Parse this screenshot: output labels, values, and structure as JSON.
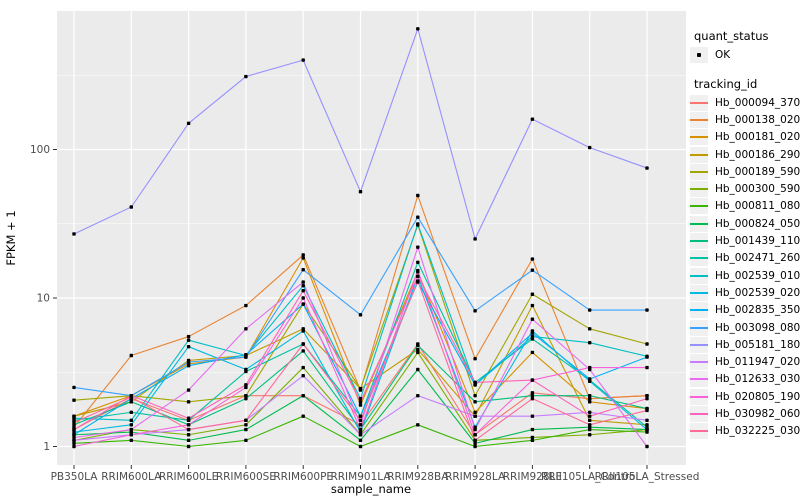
{
  "legend": {
    "quant_status_title": "quant_status",
    "quant_status_value": "OK",
    "tracking_id_title": "tracking_id"
  },
  "chart_data": {
    "type": "line",
    "title": "",
    "xlabel": "sample_name",
    "ylabel": "FPKM + 1",
    "y_scale": "log10",
    "y_ticks": [
      1,
      10,
      100
    ],
    "y_minor_ticks": [
      3.162,
      31.62,
      316.2
    ],
    "ylim": [
      0.95,
      870
    ],
    "grid": "on",
    "legend_position": "right",
    "panel_bg": "#EBEBEB",
    "grid_color": "#FFFFFF",
    "point_color": "#000000",
    "axis_text_color": "#4D4D4D",
    "x_categories": [
      "PB350LA",
      "RRIM600LA",
      "RRIM600LE",
      "RRIM600SE",
      "RRIM600PE",
      "RRIM901LA",
      "RRIM928BA",
      "RRIM928LA",
      "RRIM928LE",
      "RRII105LA_Control",
      "RRII105LA_Stressed"
    ],
    "series": [
      {
        "name": "Hb_000094_370",
        "color": "#F8766D",
        "values": [
          1.3,
          2.1,
          1.5,
          2.2,
          2.2,
          1.4,
          4.9,
          1.2,
          2.3,
          2.1,
          2.2
        ]
      },
      {
        "name": "Hb_000138_020",
        "color": "#EA8331",
        "values": [
          1.35,
          4.1,
          5.5,
          8.9,
          19.5,
          2.4,
          49,
          3.9,
          18.3,
          2.1,
          2.2
        ]
      },
      {
        "name": "Hb_000181_020",
        "color": "#D89000",
        "values": [
          1.6,
          2.2,
          3.6,
          4.0,
          18.6,
          1.9,
          15,
          1.7,
          4.3,
          2.0,
          1.8
        ]
      },
      {
        "name": "Hb_000186_290",
        "color": "#C09B00",
        "values": [
          1.6,
          2.0,
          3.8,
          4.1,
          6.2,
          2.45,
          4.5,
          1.6,
          8.9,
          1.5,
          1.4
        ]
      },
      {
        "name": "Hb_000189_590",
        "color": "#A3A500",
        "values": [
          2.05,
          2.2,
          2.0,
          2.2,
          9.1,
          2.45,
          31,
          2.2,
          10.6,
          6.2,
          4.9
        ]
      },
      {
        "name": "Hb_000300_590",
        "color": "#7CAE00",
        "values": [
          1.1,
          1.3,
          1.2,
          1.4,
          3.4,
          1.2,
          4.3,
          1.1,
          1.15,
          1.2,
          1.3
        ]
      },
      {
        "name": "Hb_000811_080",
        "color": "#39B600",
        "values": [
          1.05,
          1.1,
          1.0,
          1.1,
          1.6,
          1.0,
          1.4,
          1.0,
          1.1,
          1.3,
          1.25
        ]
      },
      {
        "name": "Hb_000824_050",
        "color": "#00BB4E",
        "values": [
          1.2,
          1.25,
          1.1,
          1.3,
          2.2,
          1.1,
          3.3,
          1.05,
          1.3,
          1.35,
          1.3
        ]
      },
      {
        "name": "Hb_001439_110",
        "color": "#00BF7D",
        "values": [
          1.4,
          2.0,
          1.4,
          2.1,
          4.4,
          1.3,
          4.8,
          2.0,
          2.2,
          2.2,
          1.8
        ]
      },
      {
        "name": "Hb_002471_260",
        "color": "#00C1A3",
        "values": [
          1.5,
          1.7,
          1.5,
          3.2,
          4.9,
          1.6,
          17.4,
          2.7,
          5.3,
          2.8,
          1.35
        ]
      },
      {
        "name": "Hb_002539_010",
        "color": "#00BFC4",
        "values": [
          1.55,
          1.5,
          5.2,
          4.1,
          12.1,
          2.1,
          31.5,
          2.6,
          5.5,
          5.0,
          4.05
        ]
      },
      {
        "name": "Hb_002539_020",
        "color": "#00BAE0",
        "values": [
          1.25,
          1.4,
          4.7,
          3.3,
          6.0,
          1.25,
          14,
          1.35,
          6.0,
          2.75,
          1.3
        ]
      },
      {
        "name": "Hb_002835_350",
        "color": "#00B0F6",
        "values": [
          1.2,
          2.1,
          3.5,
          4.15,
          9.1,
          1.6,
          12.8,
          2.6,
          5.8,
          2.85,
          4.0
        ]
      },
      {
        "name": "Hb_003098_080",
        "color": "#35A2FF",
        "values": [
          2.5,
          2.2,
          3.7,
          4.0,
          15.5,
          7.7,
          35,
          8.2,
          15.4,
          8.3,
          8.3
        ]
      },
      {
        "name": "Hb_005181_180",
        "color": "#9590FF",
        "values": [
          27,
          41,
          150,
          310,
          400,
          52,
          650,
          25,
          160,
          103,
          75
        ]
      },
      {
        "name": "Hb_011947_020",
        "color": "#C77CFF",
        "values": [
          1.1,
          1.2,
          1.3,
          1.5,
          3.0,
          1.2,
          2.2,
          1.6,
          1.6,
          1.7,
          1.5
        ]
      },
      {
        "name": "Hb_012633_030",
        "color": "#E76BF3",
        "values": [
          1.15,
          1.3,
          2.4,
          6.2,
          12.8,
          1.4,
          22,
          1.3,
          7.2,
          3.3,
          1.0
        ]
      },
      {
        "name": "Hb_020805_190",
        "color": "#FA62DB",
        "values": [
          1.0,
          1.2,
          1.4,
          2.5,
          10.0,
          1.3,
          15.3,
          1.2,
          2.8,
          3.4,
          3.4
        ]
      },
      {
        "name": "Hb_030982_060",
        "color": "#FF62BC",
        "values": [
          1.3,
          2.2,
          1.55,
          2.6,
          11.2,
          2.0,
          14,
          2.7,
          2.8,
          1.6,
          2.1
        ]
      },
      {
        "name": "Hb_032225_030",
        "color": "#FF6A98",
        "values": [
          1.45,
          2.15,
          1.3,
          1.5,
          4.9,
          1.5,
          13,
          1.1,
          2.1,
          1.4,
          1.75
        ]
      }
    ]
  }
}
